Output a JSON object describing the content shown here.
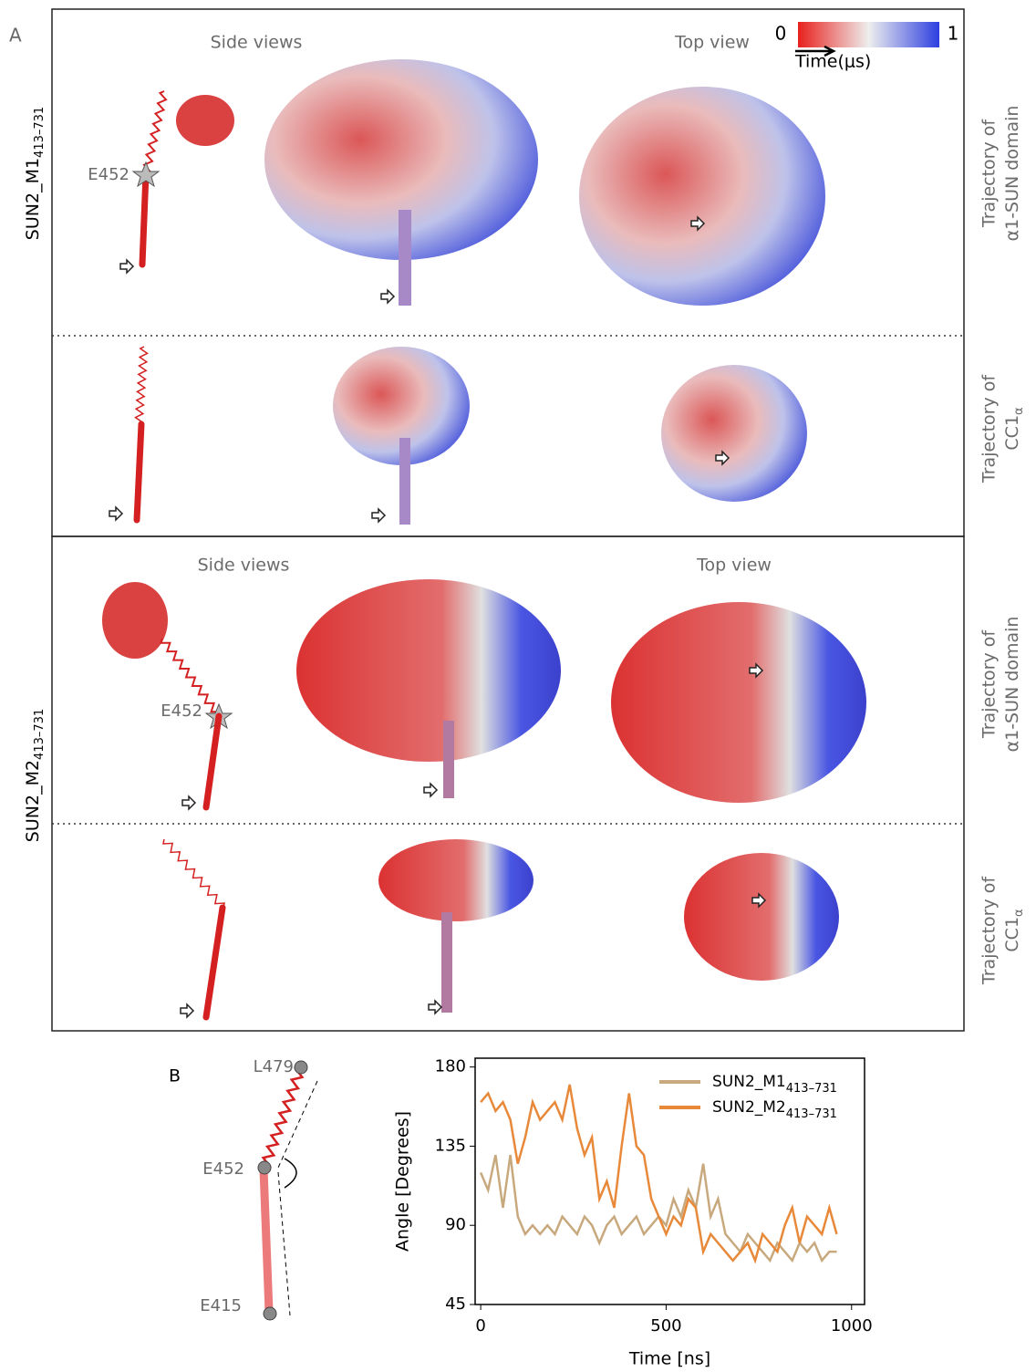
{
  "panel_a": {
    "label": "A",
    "colorbar": {
      "min": 0,
      "max": 1,
      "label": "Time(μs)"
    },
    "sections": [
      {
        "row_label": "SUN2_M1",
        "row_label_sub": "413–731",
        "side_title": "Side views",
        "top_title": "Top view",
        "residue": "E452",
        "trajectories": [
          {
            "line1": "Trajectory of",
            "line2": "α1-SUN domain"
          },
          {
            "line1": "Trajectory of",
            "line2": "CC1",
            "line2_sub": "α"
          }
        ]
      },
      {
        "row_label": "SUN2_M2",
        "row_label_sub": "413–731",
        "side_title": "Side views",
        "top_title": "Top view",
        "residue": "E452",
        "trajectories": [
          {
            "line1": "Trajectory of",
            "line2": "α1-SUN domain"
          },
          {
            "line1": "Trajectory of",
            "line2": "CC1",
            "line2_sub": "α"
          }
        ]
      }
    ]
  },
  "panel_b": {
    "label": "B",
    "residues": [
      "L479",
      "E452",
      "E415"
    ]
  },
  "chart_data": {
    "type": "line",
    "x_label": "Time [ns]",
    "y_label": "Angle [Degrees]",
    "x": [
      0,
      20,
      40,
      60,
      80,
      100,
      120,
      140,
      160,
      180,
      200,
      220,
      240,
      260,
      280,
      300,
      320,
      340,
      360,
      380,
      400,
      420,
      440,
      460,
      480,
      500,
      520,
      540,
      560,
      580,
      600,
      620,
      640,
      660,
      680,
      700,
      720,
      740,
      760,
      780,
      800,
      820,
      840,
      860,
      880,
      900,
      920,
      940,
      960
    ],
    "series": [
      {
        "name": "SUN2_M1",
        "name_sub": "413–731",
        "color": "#c8a97e",
        "values": [
          120,
          110,
          130,
          100,
          130,
          95,
          85,
          90,
          85,
          90,
          85,
          95,
          90,
          85,
          95,
          90,
          80,
          90,
          95,
          85,
          90,
          95,
          85,
          90,
          95,
          90,
          105,
          95,
          110,
          100,
          125,
          95,
          105,
          85,
          80,
          75,
          85,
          80,
          75,
          70,
          80,
          75,
          70,
          80,
          75,
          80,
          70,
          75,
          75
        ]
      },
      {
        "name": "SUN2_M2",
        "name_sub": "413–731",
        "color": "#e8893a",
        "values": [
          160,
          165,
          155,
          160,
          150,
          125,
          140,
          160,
          150,
          155,
          160,
          150,
          170,
          145,
          130,
          140,
          105,
          115,
          100,
          135,
          165,
          135,
          130,
          105,
          95,
          85,
          95,
          90,
          105,
          100,
          75,
          85,
          80,
          75,
          70,
          75,
          80,
          70,
          85,
          80,
          75,
          90,
          100,
          80,
          95,
          90,
          85,
          100,
          85
        ]
      }
    ],
    "xlim": [
      -15,
      1035
    ],
    "ylim": [
      45,
      185
    ],
    "xticks": [
      0,
      500,
      1000
    ],
    "yticks": [
      45,
      90,
      135,
      180
    ],
    "legend": "upper right"
  }
}
